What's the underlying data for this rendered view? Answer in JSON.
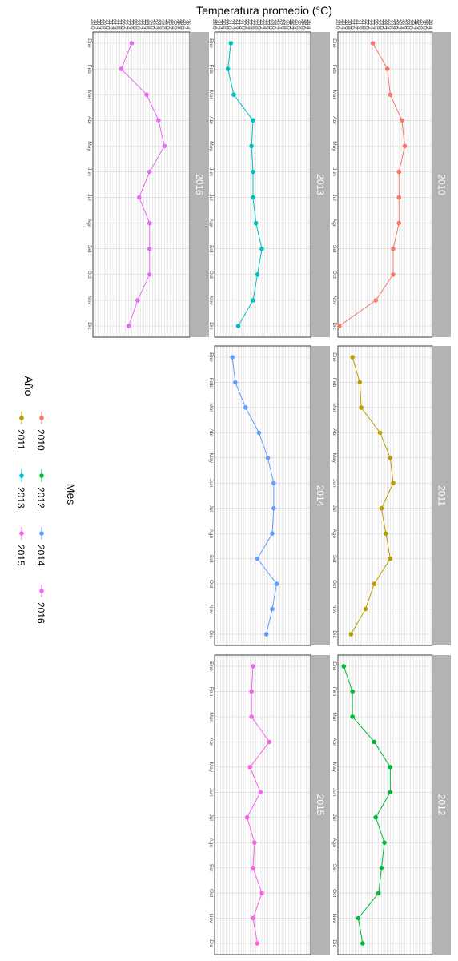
{
  "chart_data": {
    "type": "line",
    "xlabel": "Mes",
    "ylabel": "Temperatura promedio (°C)",
    "legend_title": "Año",
    "legend_position": "left",
    "grid": true,
    "ylim": [
      20,
      26.5
    ],
    "y_ticks": [
      "20.0",
      "20.2",
      "20.4",
      "20.6",
      "20.8",
      "21.0",
      "21.2",
      "21.4",
      "21.6",
      "21.8",
      "22.0",
      "22.2",
      "22.4",
      "22.6",
      "22.8",
      "23.0",
      "23.2",
      "23.4",
      "23.6",
      "23.8",
      "24.0",
      "24.2",
      "24.4",
      "24.6",
      "24.8",
      "25.0",
      "25.2",
      "25.4",
      "25.6",
      "25.8",
      "26.0",
      "26.2",
      "26.4"
    ],
    "categories": [
      "Ene",
      "Feb",
      "Mar",
      "Abr",
      "May",
      "Jun",
      "Jul",
      "Ago",
      "Set",
      "Oct",
      "Nov",
      "Dic"
    ],
    "series": [
      {
        "name": "2010",
        "color": "#F8766D",
        "values": [
          22.4,
          23.4,
          23.6,
          24.4,
          24.6,
          24.2,
          24.2,
          24.2,
          23.8,
          23.8,
          22.6,
          20.1
        ]
      },
      {
        "name": "2011",
        "color": "#B79F00",
        "values": [
          21.0,
          21.5,
          21.6,
          22.9,
          23.6,
          23.8,
          23.0,
          23.3,
          23.6,
          22.5,
          21.9,
          20.9
        ]
      },
      {
        "name": "2012",
        "color": "#00BA38",
        "values": [
          20.4,
          21.0,
          21.0,
          22.5,
          23.6,
          23.6,
          22.6,
          23.2,
          23.0,
          22.8,
          21.4,
          21.7
        ]
      },
      {
        "name": "2013",
        "color": "#00BFC4",
        "values": [
          21.1,
          20.9,
          21.3,
          22.6,
          22.5,
          22.6,
          22.6,
          22.8,
          23.2,
          22.9,
          22.6,
          21.6
        ]
      },
      {
        "name": "2014",
        "color": "#619CFF",
        "values": [
          21.2,
          21.4,
          22.1,
          23.0,
          23.6,
          24.0,
          24.0,
          23.9,
          22.9,
          24.2,
          23.9,
          23.5
        ]
      },
      {
        "name": "2015",
        "color": "#F564E3",
        "values": [
          22.6,
          22.5,
          22.5,
          23.7,
          22.4,
          23.1,
          22.2,
          22.7,
          22.6,
          23.2,
          22.6,
          22.9
        ]
      },
      {
        "name": "2016",
        "color": "#E76BF3",
        "values": [
          22.6,
          21.9,
          23.6,
          24.4,
          24.8,
          23.8,
          23.1,
          23.8,
          23.8,
          23.8,
          23.0,
          22.4
        ]
      }
    ],
    "legend_order": [
      "2010",
      "2012",
      "2014",
      "2016",
      "2011",
      "2013",
      "2015"
    ]
  }
}
